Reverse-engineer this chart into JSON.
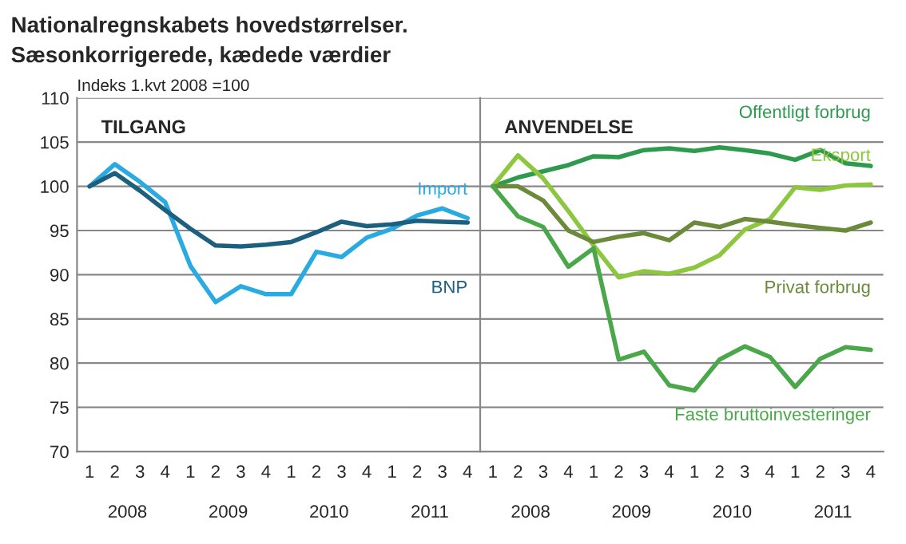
{
  "chart_data": [
    {
      "type": "line",
      "title": "Nationalregnskabets hovedstørrelser.",
      "subtitle": "Sæsonkorrigerede, kædede værdier",
      "ylabel": "Indeks 1.kvt 2008 =100",
      "categories": [
        "1",
        "2",
        "3",
        "4",
        "1",
        "2",
        "3",
        "4",
        "1",
        "2",
        "3",
        "4",
        "1",
        "2",
        "3",
        "4"
      ],
      "ylim": [
        70,
        110
      ],
      "yticks": [
        70,
        75,
        80,
        85,
        90,
        95,
        100,
        105,
        110
      ],
      "grid": "y",
      "legend": false,
      "series": [
        {
          "name": "Import",
          "color": "#29abe2",
          "values": [
            100,
            102.5,
            100.5,
            98.2,
            91.0,
            86.9,
            88.7,
            87.8,
            87.8,
            92.6,
            92.0,
            94.2,
            95.2,
            96.7,
            97.5,
            96.4
          ]
        },
        {
          "name": "BNP",
          "color": "#1d5f7f",
          "values": [
            100,
            101.5,
            99.5,
            97.3,
            95.2,
            93.3,
            93.2,
            93.4,
            93.7,
            94.8,
            96.0,
            95.5,
            95.7,
            96.1,
            96.0,
            95.9
          ]
        }
      ],
      "annotations": [
        "TILGANG",
        "2008",
        "2009",
        "2010",
        "2011"
      ]
    },
    {
      "type": "line",
      "categories": [
        "1",
        "2",
        "3",
        "4",
        "1",
        "2",
        "3",
        "4",
        "1",
        "2",
        "3",
        "4",
        "1",
        "2",
        "3",
        "4"
      ],
      "ylim": [
        70,
        110
      ],
      "yticks": [
        70,
        75,
        80,
        85,
        90,
        95,
        100,
        105,
        110
      ],
      "grid": "y",
      "legend": false,
      "tick_labels": "x",
      "series": [
        {
          "name": "Offentligt forbrug",
          "color": "#2e9a4e",
          "values": [
            100,
            101.0,
            101.7,
            102.4,
            103.4,
            103.3,
            104.1,
            104.3,
            104.0,
            104.4,
            104.1,
            103.7,
            103.0,
            104.1,
            102.6,
            102.3
          ]
        },
        {
          "name": "Eksport",
          "color": "#8dc63f",
          "values": [
            100,
            103.5,
            100.9,
            97.2,
            93.3,
            89.7,
            90.4,
            90.1,
            90.8,
            92.2,
            95.1,
            96.3,
            99.9,
            99.6,
            100.1,
            100.2
          ]
        },
        {
          "name": "Privat forbrug",
          "color": "#6b8a3a",
          "values": [
            100,
            100,
            98.4,
            95.0,
            93.7,
            94.3,
            94.7,
            93.9,
            95.9,
            95.4,
            96.3,
            96.0,
            95.6,
            95.3,
            95.0,
            95.9
          ]
        },
        {
          "name": "Faste bruttoinvesteringer",
          "color": "#4aa84a",
          "values": [
            100,
            96.6,
            95.4,
            90.9,
            93.0,
            80.4,
            81.3,
            77.5,
            76.9,
            80.4,
            81.9,
            80.7,
            77.3,
            80.5,
            81.8,
            81.5
          ]
        }
      ],
      "annotations": [
        "ANVENDELSE",
        "2008",
        "2009",
        "2010",
        "2011"
      ]
    }
  ]
}
